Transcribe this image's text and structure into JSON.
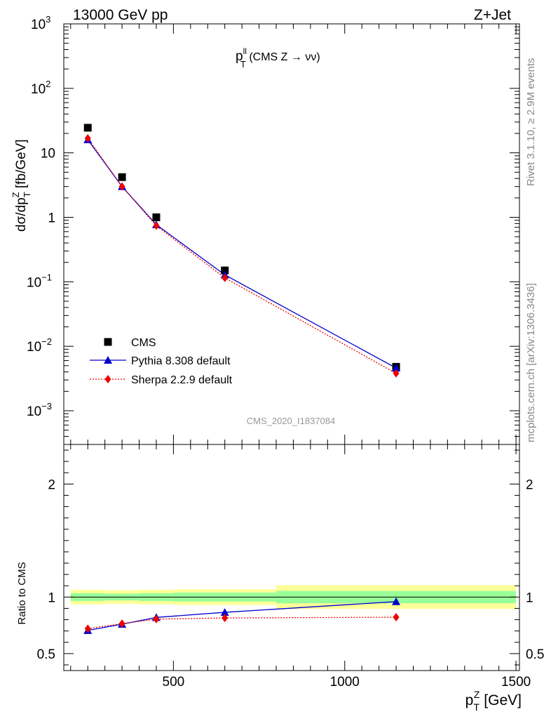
{
  "header": {
    "left": "13000 GeV pp",
    "right": "Z+Jet"
  },
  "title": {
    "main": "p",
    "sup": "ll",
    "sub": "T",
    "rest": " (CMS Z → νν)"
  },
  "side": {
    "rivet": "Rivet 3.1.10, ≥ 2.9M events",
    "mcplots": "mcplots.cern.ch [arXiv:1306.3436]"
  },
  "watermark": "CMS_2020_I1837084",
  "chart_data": [
    {
      "type": "line",
      "scale": "log-y",
      "ylabel": "dσ/dp_T^Z [fb/GeV]",
      "ylim": [
        0.0003,
        1000
      ],
      "xlim": [
        180,
        1510
      ],
      "y_ticks": [
        {
          "value": 1000,
          "label": "10",
          "exp": "3"
        },
        {
          "value": 100,
          "label": "10",
          "exp": "2"
        },
        {
          "value": 10,
          "label": "10",
          "exp": ""
        },
        {
          "value": 1,
          "label": "1",
          "exp": ""
        },
        {
          "value": 0.1,
          "label": "10",
          "exp": "−1"
        },
        {
          "value": 0.01,
          "label": "10",
          "exp": "−2"
        },
        {
          "value": 0.001,
          "label": "10",
          "exp": "−3"
        }
      ],
      "series": [
        {
          "name": "CMS",
          "style": "marker-square",
          "color": "#000000",
          "x": [
            250,
            350,
            450,
            650,
            1150
          ],
          "y": [
            24.5,
            4.2,
            1.0,
            0.15,
            0.0048
          ]
        },
        {
          "name": "Pythia 8.308 default",
          "style": "line-triangle",
          "color": "#0000cc",
          "x": [
            250,
            350,
            450,
            650,
            1150
          ],
          "y": [
            16.0,
            3.0,
            0.77,
            0.128,
            0.0046
          ]
        },
        {
          "name": "Sherpa 2.2.9 default",
          "style": "dotted-diamond",
          "color": "#ee0000",
          "x": [
            250,
            350,
            450,
            650,
            1150
          ],
          "y": [
            16.8,
            3.0,
            0.74,
            0.115,
            0.0038
          ]
        }
      ],
      "legend": "bottom-left"
    },
    {
      "type": "line",
      "ylabel": "Ratio to CMS",
      "xlabel": "p_T^Z [GeV]",
      "ylim": [
        0.35,
        2.35
      ],
      "xlim": [
        180,
        1510
      ],
      "x_ticks": [
        500,
        1000,
        1500
      ],
      "y_ticks": [
        {
          "value": 0.5,
          "label": "0.5"
        },
        {
          "value": 1,
          "label": "1"
        },
        {
          "value": 2,
          "label": "2"
        }
      ],
      "bands": [
        {
          "x0": 200,
          "x1": 300,
          "yellow": [
            0.935,
            1.065
          ],
          "green": [
            0.965,
            1.035
          ]
        },
        {
          "x0": 300,
          "x1": 400,
          "yellow": [
            0.94,
            1.06
          ],
          "green": [
            0.97,
            1.03
          ]
        },
        {
          "x0": 400,
          "x1": 500,
          "yellow": [
            0.935,
            1.065
          ],
          "green": [
            0.965,
            1.035
          ]
        },
        {
          "x0": 500,
          "x1": 800,
          "yellow": [
            0.93,
            1.07
          ],
          "green": [
            0.96,
            1.04
          ]
        },
        {
          "x0": 800,
          "x1": 1500,
          "yellow": [
            0.895,
            1.105
          ],
          "green": [
            0.945,
            1.055
          ]
        }
      ],
      "series": [
        {
          "name": "Pythia 8.308 default",
          "color": "#0000cc",
          "x": [
            250,
            350,
            450,
            650,
            1150
          ],
          "y": [
            0.705,
            0.76,
            0.82,
            0.865,
            0.96
          ],
          "err": [
            0.005,
            0.006,
            0.006,
            0.008,
            0.02
          ]
        },
        {
          "name": "Sherpa 2.2.9 default",
          "color": "#ee0000",
          "x": [
            250,
            350,
            450,
            650,
            1150
          ],
          "y": [
            0.72,
            0.765,
            0.805,
            0.815,
            0.822
          ],
          "err": [
            0.006,
            0.006,
            0.008,
            0.012,
            0.025
          ]
        }
      ]
    }
  ]
}
